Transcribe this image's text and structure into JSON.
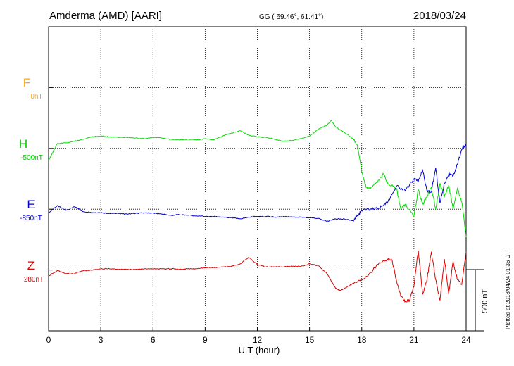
{
  "header": {
    "station": "Amderma (AMD)  [AARI]",
    "coords": "GG ( 69.46°,  61.41°)",
    "date": "2018/03/24"
  },
  "side_note": "Plotted at 2018/04/24 01:36 UT",
  "scale_bar": {
    "label": "500 nT",
    "value_nT": 500
  },
  "colors": {
    "F": "#ffa500",
    "H": "#00dd00",
    "E": "#0000cc",
    "Z": "#dd0000"
  },
  "chart_data": {
    "type": "line",
    "title": "Amderma (AMD)  [AARI]",
    "xlabel": "U T (hour)",
    "ylabel": "",
    "xlim": [
      0,
      24
    ],
    "xticks": [
      "0",
      "3",
      "6",
      "9",
      "12",
      "15",
      "18",
      "21",
      "24"
    ],
    "grid": true,
    "units_per_division_nT": 500,
    "series": [
      {
        "name": "F",
        "baseline": "0nT",
        "color": "#ffa500",
        "x": [],
        "y": []
      },
      {
        "name": "H",
        "baseline": "-500nT",
        "color": "#00dd00",
        "x": [
          0,
          0.5,
          1,
          1.5,
          2,
          2.5,
          3,
          3.5,
          4,
          4.5,
          5,
          5.5,
          6,
          6.5,
          7,
          7.5,
          8,
          8.5,
          9,
          9.5,
          10,
          10.5,
          11,
          11.5,
          12,
          12.5,
          13,
          13.5,
          14,
          14.5,
          15,
          15.5,
          16,
          16.25,
          16.5,
          17,
          17.5,
          17.75,
          18,
          18.25,
          18.5,
          19,
          19.25,
          19.5,
          20,
          20.25,
          20.5,
          21,
          21.25,
          21.5,
          21.75,
          22,
          22.25,
          22.5,
          22.75,
          23,
          23.25,
          23.5,
          23.75,
          24
        ],
        "y": [
          -600,
          -460,
          -455,
          -440,
          -425,
          -405,
          -400,
          -405,
          -410,
          -410,
          -415,
          -420,
          -410,
          -415,
          -425,
          -430,
          -425,
          -430,
          -420,
          -430,
          -400,
          -375,
          -355,
          -390,
          -405,
          -410,
          -425,
          -440,
          -435,
          -420,
          -400,
          -340,
          -310,
          -270,
          -325,
          -370,
          -420,
          -480,
          -690,
          -820,
          -830,
          -760,
          -710,
          -790,
          -830,
          -1000,
          -960,
          -1060,
          -840,
          -960,
          -900,
          -820,
          -1000,
          -790,
          -900,
          -800,
          -1000,
          -830,
          -940,
          -1230
        ]
      },
      {
        "name": "E",
        "baseline": "-850nT",
        "color": "#0000cc",
        "x": [
          0,
          0.5,
          1,
          1.5,
          2,
          2.5,
          3,
          3.5,
          4,
          4.5,
          5,
          5.5,
          6,
          6.5,
          7,
          7.5,
          8,
          8.5,
          9,
          9.5,
          10,
          10.5,
          11,
          11.5,
          12,
          12.5,
          13,
          13.5,
          14,
          14.5,
          15,
          15.5,
          16,
          16.5,
          17,
          17.5,
          17.75,
          18,
          18.5,
          19,
          19.5,
          20,
          20.5,
          21,
          21.25,
          21.5,
          21.75,
          22,
          22.25,
          22.5,
          22.75,
          23,
          23.25,
          23.5,
          23.75,
          24
        ],
        "y": [
          -880,
          -820,
          -860,
          -830,
          -870,
          -880,
          -880,
          -885,
          -885,
          -890,
          -885,
          -880,
          -880,
          -890,
          -900,
          -895,
          -900,
          -905,
          -910,
          -910,
          -915,
          -920,
          -930,
          -915,
          -910,
          -910,
          -915,
          -910,
          -915,
          -915,
          -920,
          -925,
          -950,
          -930,
          -930,
          -945,
          -905,
          -860,
          -850,
          -840,
          -790,
          -660,
          -700,
          -600,
          -620,
          -530,
          -700,
          -710,
          -510,
          -800,
          -640,
          -560,
          -580,
          -480,
          -360,
          -320
        ]
      },
      {
        "name": "Z",
        "baseline": "280nT",
        "color": "#dd0000",
        "x": [
          0,
          0.5,
          1,
          1.5,
          2,
          2.5,
          3,
          3.5,
          4,
          4.5,
          5,
          5.5,
          6,
          6.5,
          7,
          7.5,
          8,
          8.5,
          9,
          9.5,
          10,
          10.5,
          11,
          11.5,
          12,
          12.5,
          13,
          13.5,
          14,
          14.5,
          15,
          15.5,
          16,
          16.5,
          16.75,
          17,
          17.5,
          18,
          18.5,
          19,
          19.5,
          19.75,
          20,
          20.25,
          20.5,
          20.75,
          21,
          21.25,
          21.5,
          21.75,
          22,
          22.25,
          22.5,
          22.75,
          23,
          23.25,
          23.5,
          23.75,
          24
        ],
        "y": [
          230,
          275,
          250,
          250,
          275,
          280,
          290,
          290,
          285,
          285,
          285,
          290,
          290,
          290,
          290,
          285,
          290,
          290,
          300,
          300,
          305,
          310,
          330,
          385,
          325,
          305,
          305,
          305,
          310,
          310,
          330,
          315,
          250,
          130,
          110,
          130,
          170,
          200,
          260,
          340,
          370,
          360,
          190,
          60,
          20,
          30,
          150,
          440,
          80,
          200,
          430,
          200,
          30,
          370,
          80,
          350,
          200,
          160,
          430
        ]
      }
    ]
  }
}
